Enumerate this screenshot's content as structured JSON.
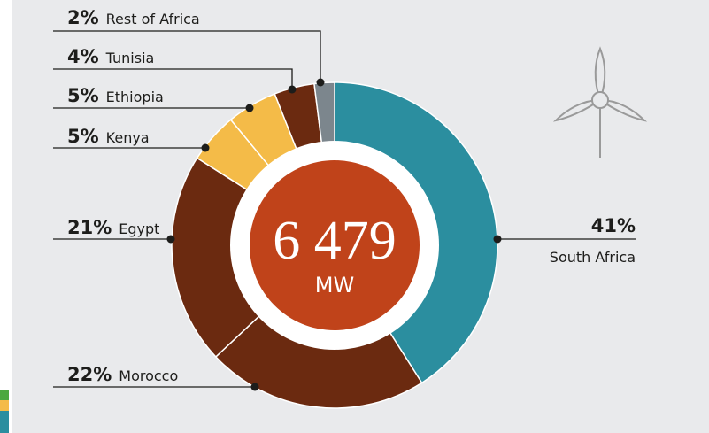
{
  "chart_data": {
    "type": "donut",
    "categories": [
      "South Africa",
      "Morocco",
      "Egypt",
      "Kenya",
      "Ethiopia",
      "Tunisia",
      "Rest of Africa"
    ],
    "values": [
      41,
      22,
      21,
      5,
      5,
      4,
      2
    ],
    "value_labels": [
      "41%",
      "22%",
      "21%",
      "5%",
      "5%",
      "4%",
      "2%"
    ],
    "colors": [
      "#2b8e9f",
      "#6b2a10",
      "#6b2a10",
      "#f4bb48",
      "#f4bb48",
      "#6b2a10",
      "#7c868d"
    ],
    "center_value": "6 479",
    "center_unit": "MW"
  }
}
